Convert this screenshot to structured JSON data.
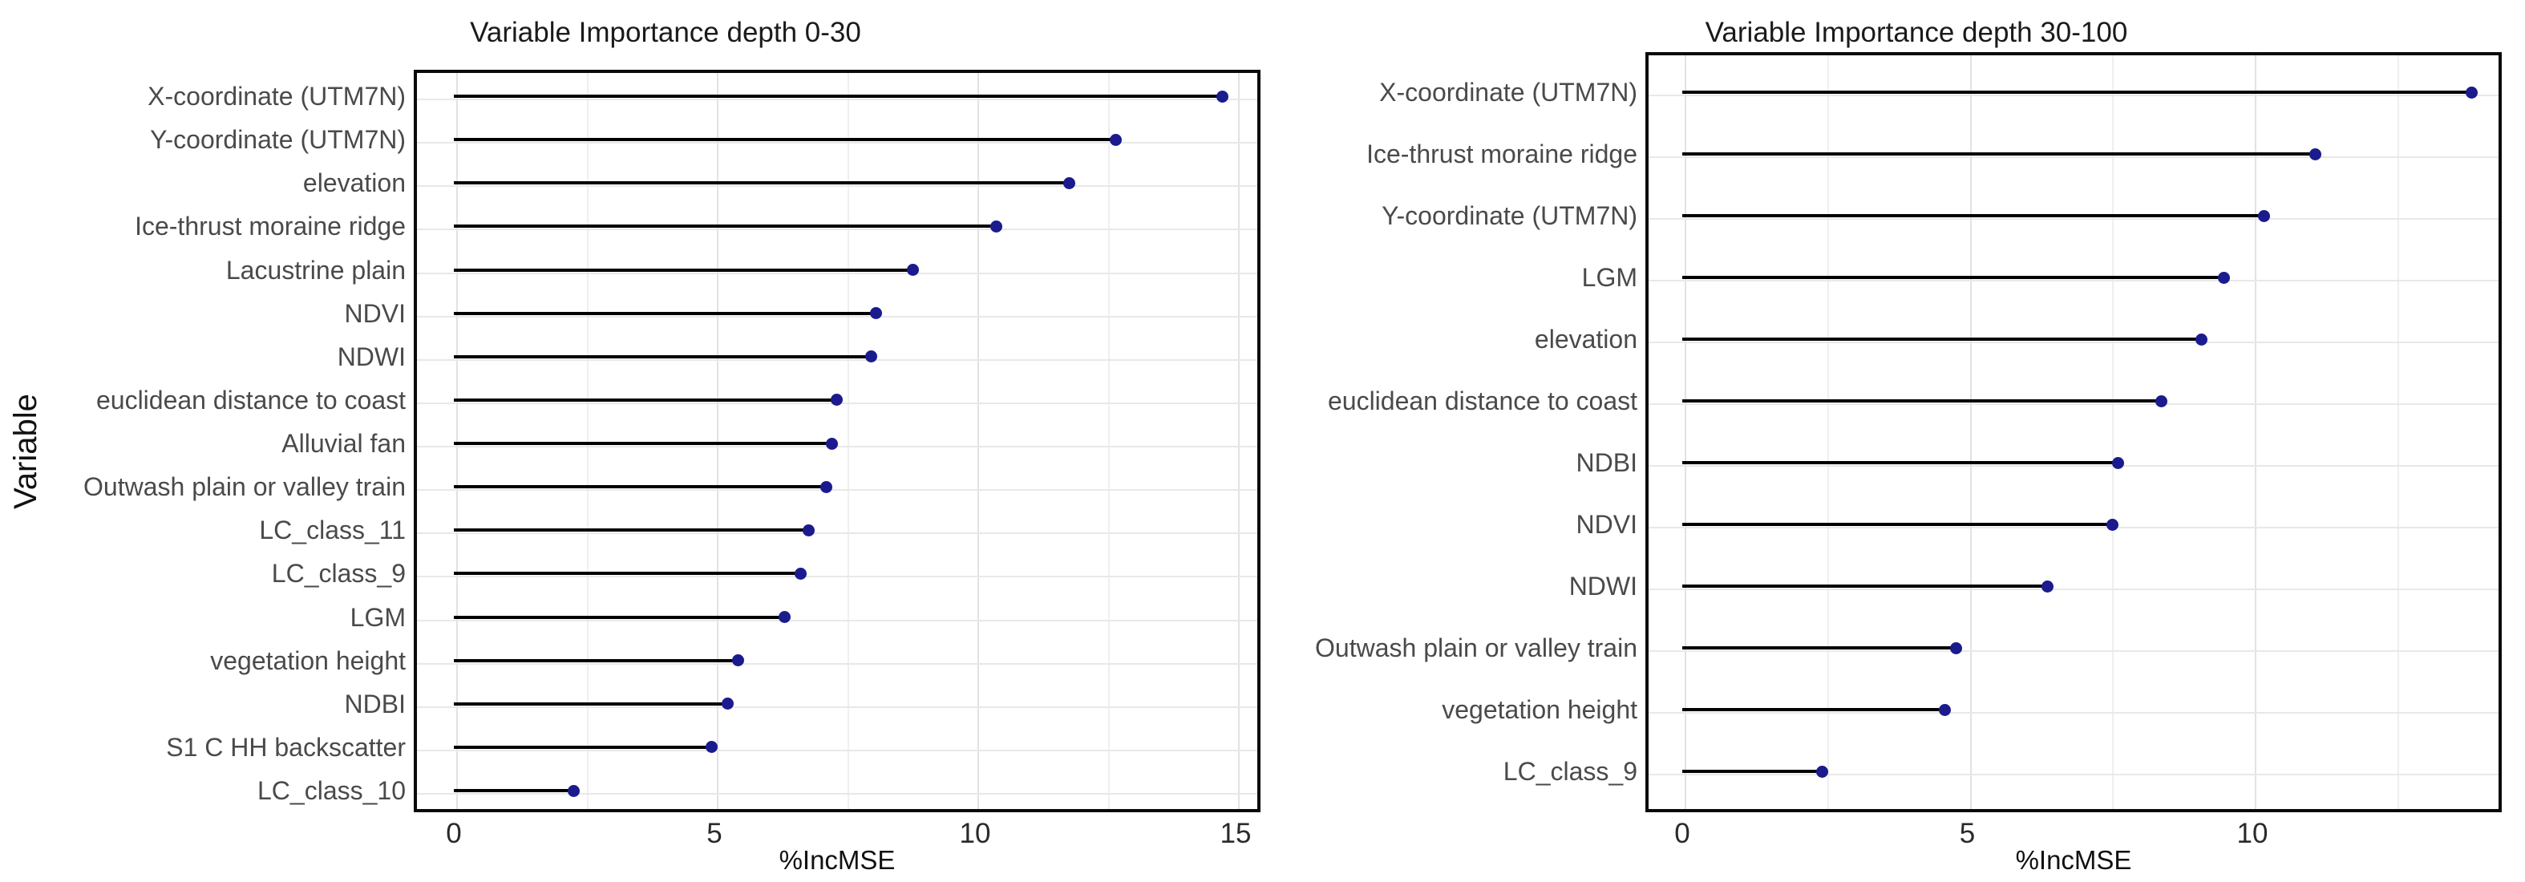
{
  "chart_data": [
    {
      "type": "lollipop",
      "title": "Variable Importance depth 0-30",
      "xlabel": "%IncMSE",
      "ylabel": "Variable",
      "xlim": [
        0,
        15.5
      ],
      "x_ticks": [
        "0",
        "5",
        "10",
        "15"
      ],
      "x_tick_values": [
        0,
        5,
        10,
        15
      ],
      "grid": "on",
      "point_color": "#1b1b8e",
      "items": [
        {
          "label": "X-coordinate (UTM7N)",
          "value": 14.75
        },
        {
          "label": "Y-coordinate (UTM7N)",
          "value": 12.7
        },
        {
          "label": "elevation",
          "value": 11.8
        },
        {
          "label": "Ice-thrust moraine ridge",
          "value": 10.4
        },
        {
          "label": "Lacustrine plain",
          "value": 8.8
        },
        {
          "label": "NDVI",
          "value": 8.1
        },
        {
          "label": "NDWI",
          "value": 8.0
        },
        {
          "label": "euclidean distance to coast",
          "value": 7.35
        },
        {
          "label": "Alluvial fan",
          "value": 7.25
        },
        {
          "label": "Outwash plain or valley train",
          "value": 7.15
        },
        {
          "label": "LC_class_11",
          "value": 6.8
        },
        {
          "label": "LC_class_9",
          "value": 6.65
        },
        {
          "label": "LGM",
          "value": 6.35
        },
        {
          "label": "vegetation height",
          "value": 5.45
        },
        {
          "label": "NDBI",
          "value": 5.25
        },
        {
          "label": "S1 C HH backscatter",
          "value": 4.95
        },
        {
          "label": "LC_class_10",
          "value": 2.3
        }
      ]
    },
    {
      "type": "lollipop",
      "title": "Variable Importance depth 30-100",
      "xlabel": "%IncMSE",
      "ylabel": "",
      "xlim": [
        0,
        14.4
      ],
      "x_ticks": [
        "0",
        "5",
        "10"
      ],
      "x_tick_values": [
        0,
        5,
        10
      ],
      "grid": "on",
      "point_color": "#1b1b8e",
      "items": [
        {
          "label": "X-coordinate (UTM7N)",
          "value": 13.85
        },
        {
          "label": "Ice-thrust moraine ridge",
          "value": 11.1
        },
        {
          "label": "Y-coordinate (UTM7N)",
          "value": 10.2
        },
        {
          "label": "LGM",
          "value": 9.5
        },
        {
          "label": "elevation",
          "value": 9.1
        },
        {
          "label": "euclidean distance to coast",
          "value": 8.4
        },
        {
          "label": "NDBI",
          "value": 7.65
        },
        {
          "label": "NDVI",
          "value": 7.55
        },
        {
          "label": "NDWI",
          "value": 6.4
        },
        {
          "label": "Outwash plain or valley train",
          "value": 4.8
        },
        {
          "label": "vegetation height",
          "value": 4.6
        },
        {
          "label": "LC_class_9",
          "value": 2.45
        }
      ]
    }
  ],
  "colors": {
    "point": "#1b1b8e",
    "stem": "#000000",
    "panel_border": "#0a0a0a",
    "grid_major": "#e2e2e2",
    "grid_minor": "#efefef",
    "axis_text": "#4a4a4a",
    "title_text": "#1a1a1a"
  }
}
